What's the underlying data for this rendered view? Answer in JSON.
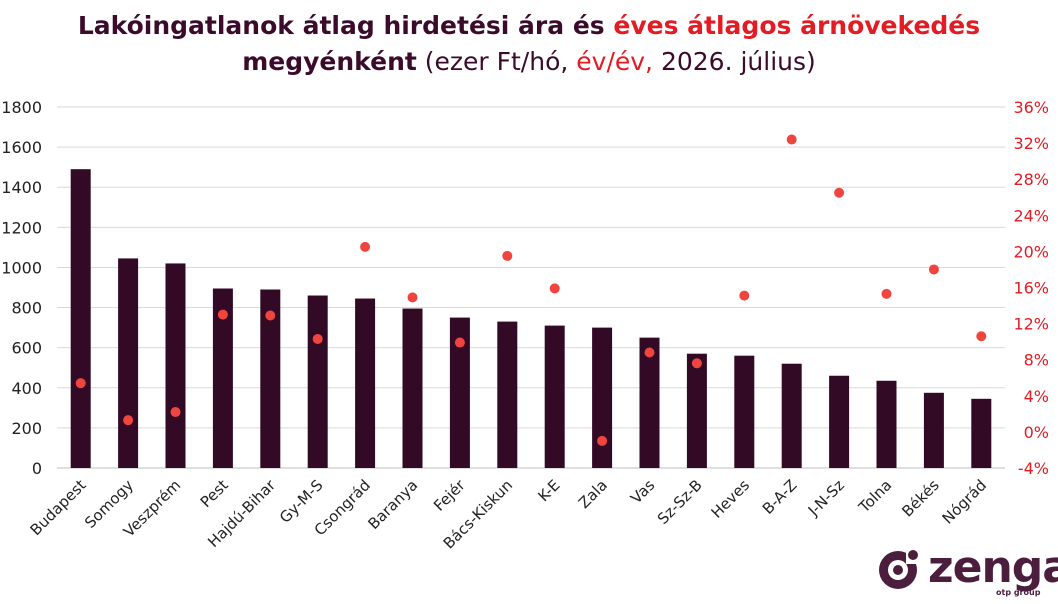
{
  "title": {
    "line1_part1": "Lakóingatlanok átlag hirdetési ára és ",
    "line1_part2": "éves átlagos árnövekedés",
    "line2_part1": "megyénként",
    "line2_part2": " (ezer Ft/hó, ",
    "line2_part3": "év/év,",
    "line2_part4": " 2026. július)"
  },
  "logo": {
    "name": "zenga",
    "sub": "otp group"
  },
  "colors": {
    "bar": "#330a25",
    "dot": "#f0453f",
    "right_axis": "#e31b23",
    "title": "#3a0b2a",
    "grid": "#d9d9d9",
    "logo": "#4a1e3c"
  },
  "chart_data": {
    "type": "bar",
    "categories": [
      "Budapest",
      "Somogy",
      "Veszprém",
      "Pest",
      "Hajdú-Bihar",
      "Gy-M-S",
      "Csongrád",
      "Baranya",
      "Fejér",
      "Bács-Kiskun",
      "K-E",
      "Zala",
      "Vas",
      "Sz-Sz-B",
      "Heves",
      "B-A-Z",
      "J-N-Sz",
      "Tolna",
      "Békés",
      "Nógrád"
    ],
    "series": [
      {
        "type": "bar",
        "axis": "left",
        "values": [
          1490,
          1045,
          1020,
          895,
          890,
          860,
          845,
          795,
          750,
          730,
          710,
          700,
          650,
          570,
          560,
          520,
          460,
          435,
          375,
          345
        ]
      },
      {
        "type": "scatter",
        "axis": "right",
        "values": [
          5.4,
          1.3,
          2.2,
          13.0,
          12.9,
          10.3,
          20.5,
          14.9,
          9.9,
          19.5,
          15.9,
          -1.0,
          8.8,
          7.6,
          15.1,
          32.4,
          26.5,
          15.3,
          18.0,
          10.6
        ]
      }
    ],
    "y_left": {
      "ylim": [
        0,
        1800
      ],
      "ticks": [
        "0",
        "200",
        "400",
        "600",
        "800",
        "1000",
        "1200",
        "1400",
        "1600",
        "1800"
      ]
    },
    "y_right": {
      "ylim": [
        -4,
        36
      ],
      "ticks": [
        "-4%",
        "0%",
        "4%",
        "8%",
        "12%",
        "16%",
        "20%",
        "24%",
        "28%",
        "32%",
        "36%"
      ]
    },
    "grid": true,
    "legend": "none"
  }
}
